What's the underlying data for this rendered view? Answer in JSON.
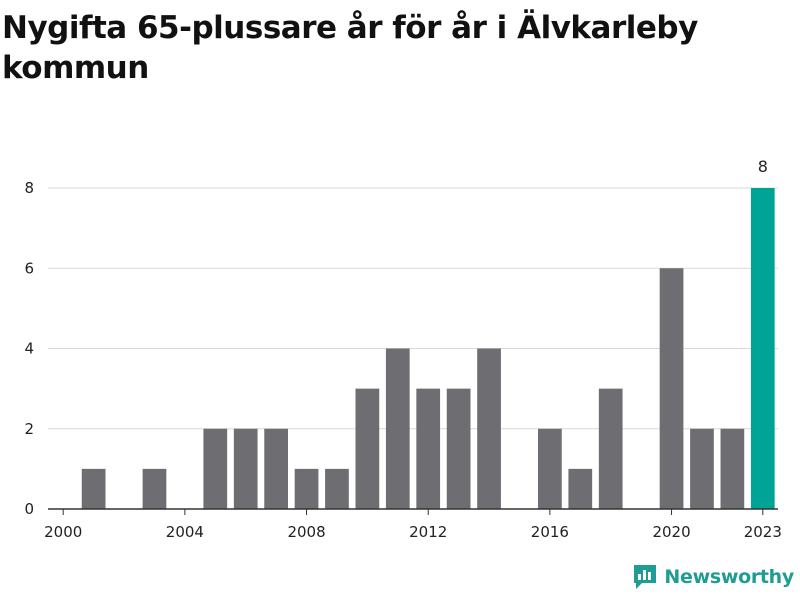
{
  "title": "Nygifta 65-plussare år för år i Älvkarleby kommun",
  "brand": {
    "name": "Newsworthy",
    "color": "#1f9c93"
  },
  "colors": {
    "bar": "#6e6d72",
    "highlight": "#00a497",
    "grid": "#d9d9d9",
    "axis": "#333333"
  },
  "chart_data": {
    "type": "bar",
    "categories": [
      2000,
      2001,
      2002,
      2003,
      2004,
      2005,
      2006,
      2007,
      2008,
      2009,
      2010,
      2011,
      2012,
      2013,
      2014,
      2015,
      2016,
      2017,
      2018,
      2019,
      2020,
      2021,
      2022,
      2023
    ],
    "values": [
      0,
      1,
      0,
      1,
      0,
      2,
      2,
      2,
      1,
      1,
      3,
      4,
      3,
      3,
      4,
      0,
      2,
      1,
      3,
      0,
      6,
      2,
      2,
      8
    ],
    "title": "Nygifta 65-plussare år för år i Älvkarleby kommun",
    "xlabel": "",
    "ylabel": "",
    "ylim": [
      0,
      8
    ],
    "yticks": [
      0,
      2,
      4,
      6,
      8
    ],
    "xticks": [
      2000,
      2004,
      2008,
      2012,
      2016,
      2020,
      2023
    ],
    "highlight": {
      "category": 2023,
      "label": "8"
    },
    "grid": true,
    "legend": "none"
  }
}
